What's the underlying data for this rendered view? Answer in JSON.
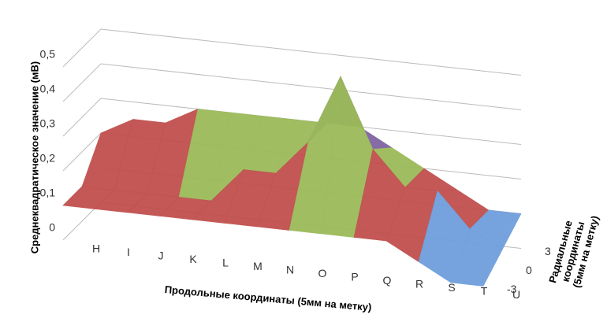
{
  "chart_data": {
    "type": "surface",
    "y_label": "Среднеквадратическое значение (мВ)",
    "x_label": "Продольные координаты (5мм на метку)",
    "depth_label": [
      "Радиальные",
      "координаты",
      "(5мм на метку)"
    ],
    "categories": [
      "H",
      "I",
      "J",
      "K",
      "L",
      "M",
      "N",
      "O",
      "P",
      "Q",
      "R",
      "S",
      "T",
      "U"
    ],
    "depth_categories": [
      -3,
      0,
      3
    ],
    "rows": [
      [
        0.1,
        0.1,
        0.1,
        0.1,
        0.1,
        0.1,
        0.1,
        0.1,
        0.1,
        0.1,
        0.1,
        0.05,
        0,
        0
      ],
      [
        0.1,
        0.1,
        0.1,
        0.1,
        0.1,
        0.2,
        0.2,
        0.3,
        0.5,
        0.3,
        0.2,
        0.2,
        0.1,
        0.05
      ],
      [
        0.2,
        0.25,
        0.25,
        0.3,
        0.3,
        0.3,
        0.3,
        0.3,
        0.3,
        0.25,
        0.2,
        0.15,
        0.1,
        0.1
      ]
    ],
    "ylim": [
      0,
      0.5
    ],
    "yticks": [
      0,
      {
        "value": 0.1,
        "label": "0,1"
      },
      {
        "value": 0.2,
        "label": "0,2"
      },
      {
        "value": 0.3,
        "label": "0,3"
      },
      {
        "value": 0.4,
        "label": "0,4"
      },
      {
        "value": 0.5,
        "label": "0,5"
      }
    ],
    "band_colors": [
      "#6f9fdc",
      "#c0504d",
      "#9bbb59",
      "#8064a2",
      "#4bacc6"
    ],
    "grid": true
  }
}
